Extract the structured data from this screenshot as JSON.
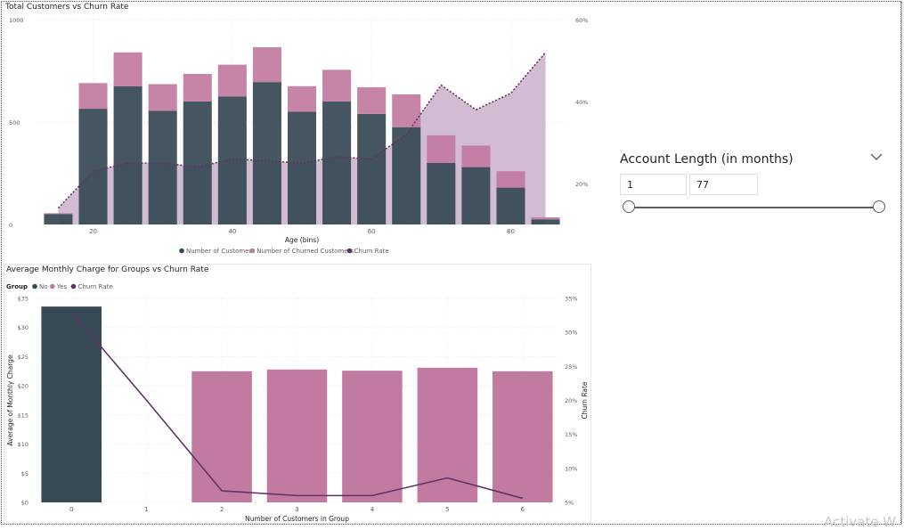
{
  "watermark": "Activate W",
  "colors": {
    "customers": "#374955",
    "churned": "#c27ba0",
    "churn_rate": "#5f3463",
    "churn_area": "#c9b0c9"
  },
  "slicer": {
    "title": "Account Length (in months)",
    "min_value": "1",
    "max_value": "77",
    "dropdown_icon": "chevron-down-icon"
  },
  "top_chart": {
    "title": "Total Customers vs Churn Rate",
    "legend": [
      "Number of Customers",
      "Number of Churned Customers",
      "Churn Rate"
    ]
  },
  "bottom_chart": {
    "title": "Average Monthly Charge for Groups vs Churn Rate",
    "legend_title": "Group",
    "legend": [
      "No",
      "Yes",
      "Churn Rate"
    ]
  },
  "chart_data": [
    {
      "type": "bar",
      "title": "Total Customers vs Churn Rate",
      "xlabel": "Age (bins)",
      "ylabel": "",
      "y2label": "",
      "x": [
        15,
        20,
        25,
        30,
        35,
        40,
        45,
        50,
        55,
        60,
        65,
        70,
        75,
        80,
        85
      ],
      "x_ticks": [
        20,
        40,
        60,
        80
      ],
      "x_tick_labels": [
        "20",
        "40",
        "60",
        "80"
      ],
      "xlim": [
        12,
        88
      ],
      "ylim": [
        0,
        1000
      ],
      "y_ticks": [
        0,
        500,
        1000
      ],
      "y_tick_labels": [
        "0",
        "500",
        "1000"
      ],
      "y2lim": [
        10,
        60
      ],
      "y2_ticks": [
        20,
        40,
        60
      ],
      "y2_tick_labels": [
        "20%",
        "40%",
        "60%"
      ],
      "series": [
        {
          "name": "Number of Customers",
          "values": [
            50,
            565,
            675,
            555,
            600,
            625,
            695,
            550,
            600,
            540,
            475,
            300,
            280,
            180,
            25
          ]
        },
        {
          "name": "Number of Churned Customers",
          "values": [
            5,
            125,
            165,
            130,
            135,
            155,
            170,
            125,
            155,
            130,
            160,
            135,
            105,
            80,
            10
          ]
        },
        {
          "name": "Churn Rate",
          "axis": "secondary",
          "style": "dotted line with area",
          "values": [
            14,
            23,
            25,
            25,
            24,
            26,
            25.5,
            25,
            26.5,
            26,
            32,
            44,
            38,
            42,
            52
          ]
        }
      ],
      "grid": true,
      "legend_position": "bottom"
    },
    {
      "type": "bar",
      "title": "Average Monthly Charge for Groups vs Churn Rate",
      "xlabel": "Number of Customers in Group",
      "ylabel": "Average of Monthly Charge",
      "y2label": "Churn Rate",
      "categories": [
        "0",
        "1",
        "2",
        "3",
        "4",
        "5",
        "6"
      ],
      "ylim": [
        0,
        35
      ],
      "y_ticks": [
        0,
        5,
        10,
        15,
        20,
        25,
        30,
        35
      ],
      "y_tick_labels": [
        "$0",
        "$5",
        "$10",
        "$15",
        "$20",
        "$25",
        "$30",
        "$35"
      ],
      "y2lim": [
        5,
        35
      ],
      "y2_ticks": [
        5,
        10,
        15,
        20,
        25,
        30,
        35
      ],
      "y2_tick_labels": [
        "5%",
        "10%",
        "15%",
        "20%",
        "25%",
        "30%",
        "35%"
      ],
      "series": [
        {
          "name": "No",
          "values": [
            33.6,
            null,
            null,
            null,
            null,
            null,
            null
          ]
        },
        {
          "name": "Yes",
          "values": [
            null,
            null,
            22.5,
            22.8,
            22.6,
            23.1,
            22.5
          ]
        },
        {
          "name": "Churn Rate",
          "axis": "secondary",
          "values": [
            33,
            20,
            6.7,
            6.0,
            6.0,
            8.6,
            5.6
          ]
        }
      ],
      "grid": true,
      "legend_position": "top-left"
    }
  ]
}
